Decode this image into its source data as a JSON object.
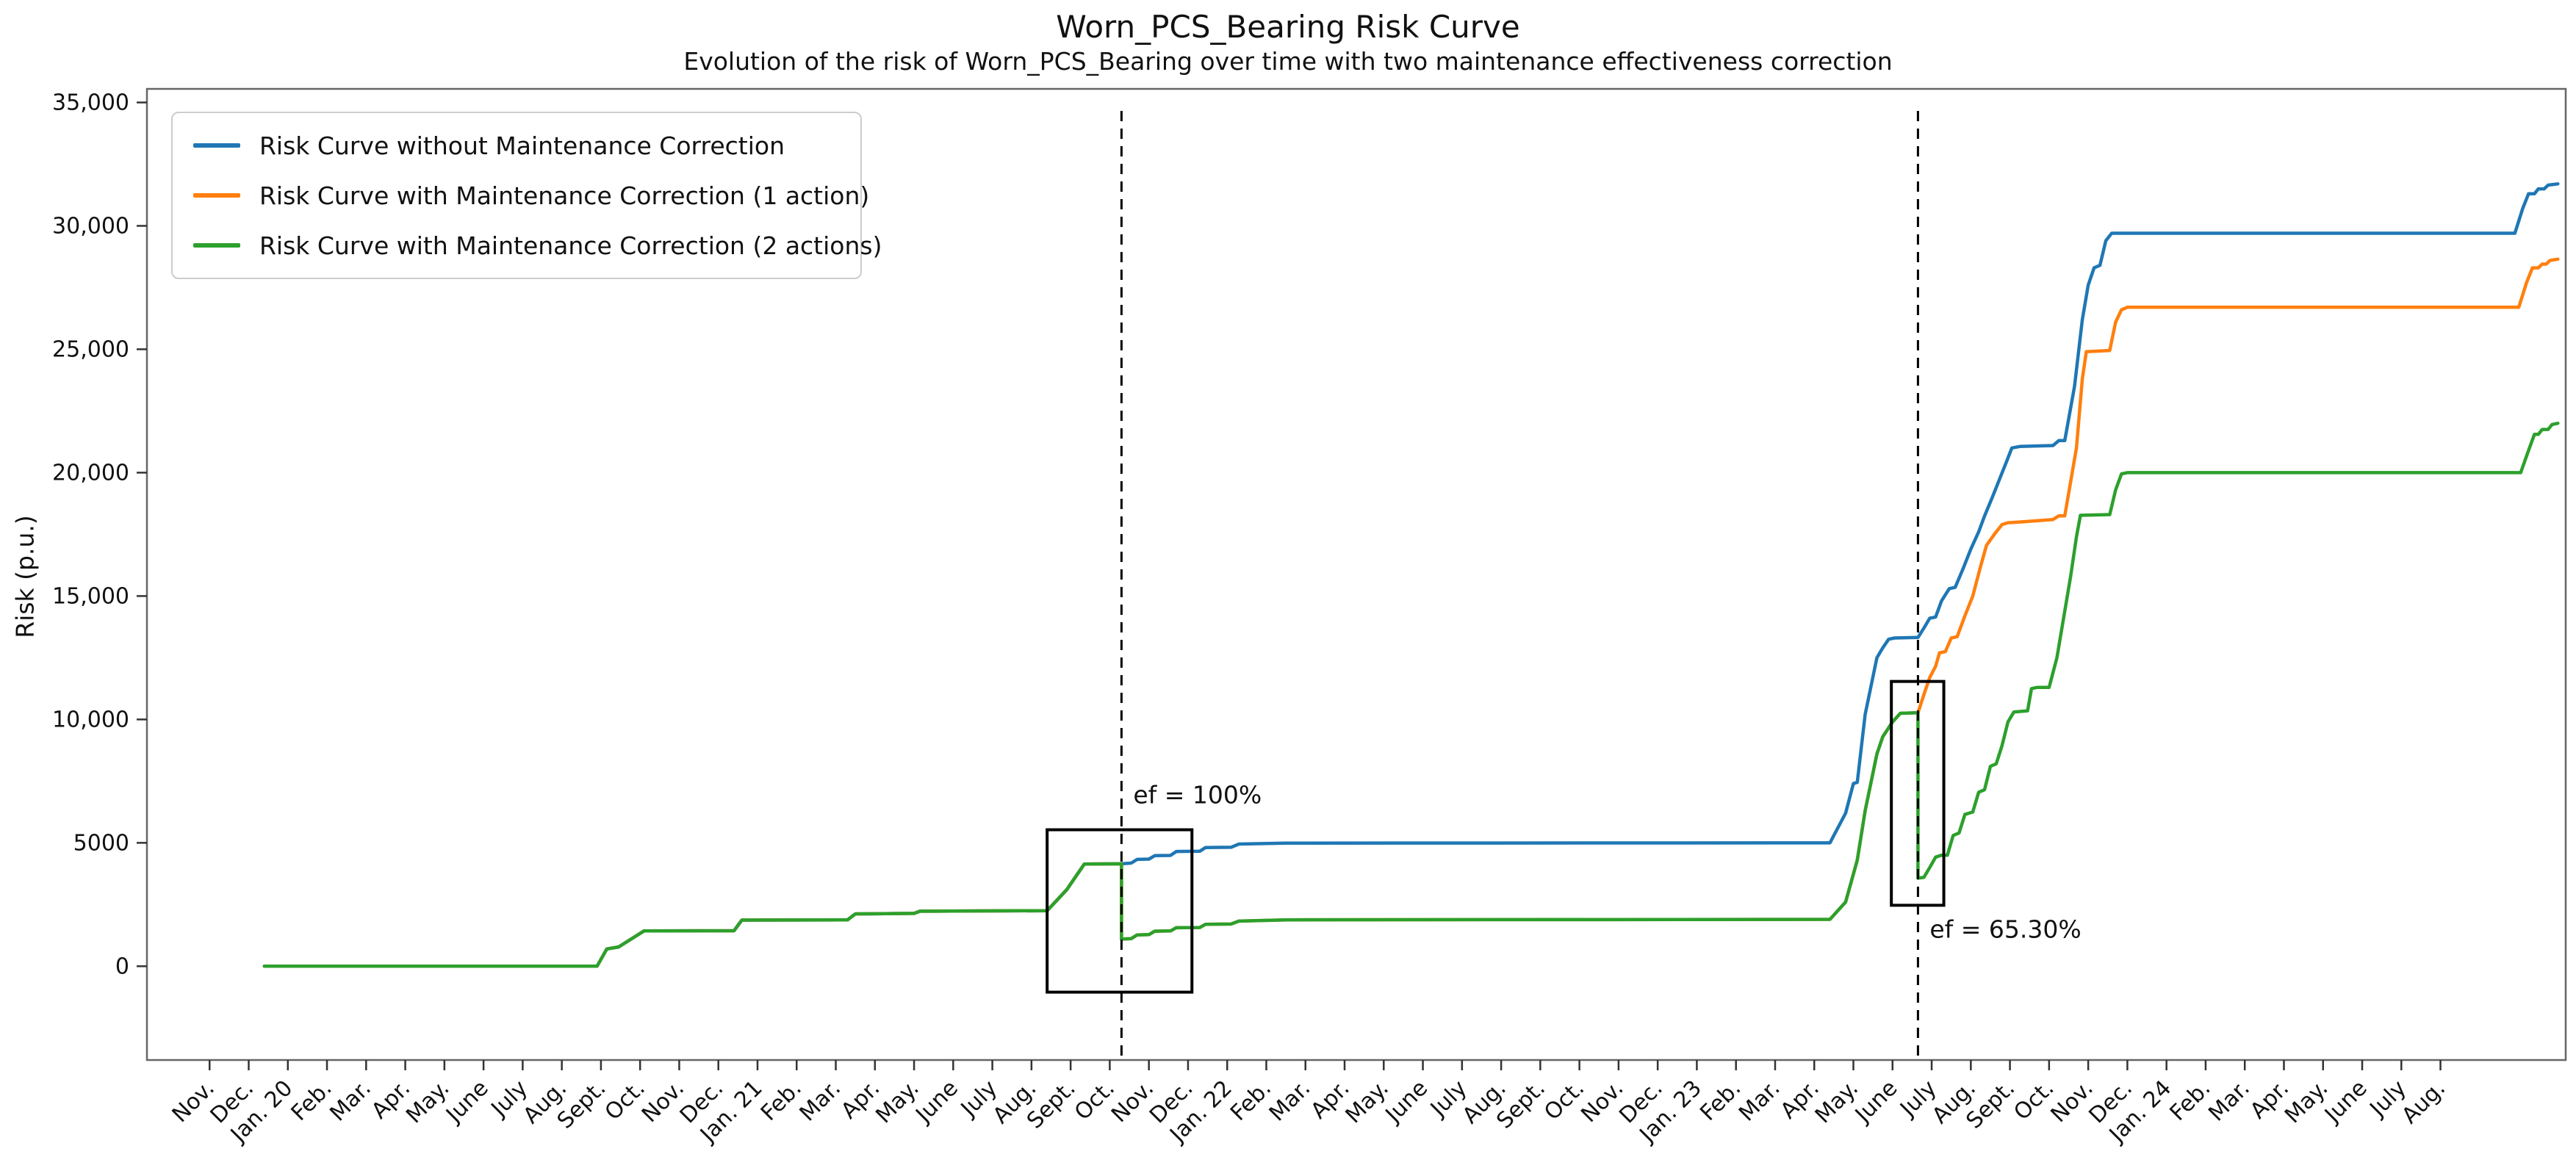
{
  "figure": {
    "title": "Worn_PCS_Bearing Risk Curve",
    "subtitle": "Evolution of the risk of Worn_PCS_Bearing over time with two maintenance effectiveness correction",
    "ylabel": "Risk (p.u.)"
  },
  "legend": {
    "entries": [
      {
        "label": "Risk Curve without Maintenance Correction",
        "color": "#1f77b4"
      },
      {
        "label": "Risk Curve with Maintenance Correction (1 action)",
        "color": "#ff7f0e"
      },
      {
        "label": "Risk Curve with Maintenance Correction (2 actions)",
        "color": "#2ca02c"
      }
    ]
  },
  "chart_data": {
    "type": "line",
    "title": "Worn_PCS_Bearing Risk Curve",
    "subtitle": "Evolution of the risk of Worn_PCS_Bearing over time with two maintenance effectiveness correction",
    "xlabel": "",
    "ylabel": "Risk (p.u.)",
    "x_unit": "month index, 0 = Nov. 2019 tick (data values in p.u.)",
    "x_domain": [
      -1.6,
      60.2
    ],
    "y_domain": [
      -3800,
      35550
    ],
    "grid": false,
    "legend_position": "upper left",
    "x_tick_labels": [
      "Nov.",
      "Dec.",
      "Jan. 20",
      "Feb.",
      "Mar.",
      "Apr.",
      "May.",
      "June",
      "July",
      "Aug.",
      "Sept.",
      "Oct.",
      "Nov.",
      "Dec.",
      "Jan. 21",
      "Feb.",
      "Mar.",
      "Apr.",
      "May.",
      "June",
      "July",
      "Aug.",
      "Sept.",
      "Oct.",
      "Nov.",
      "Dec.",
      "Jan. 22",
      "Feb.",
      "Mar.",
      "Apr.",
      "May.",
      "June",
      "July",
      "Aug.",
      "Sept.",
      "Oct.",
      "Nov.",
      "Dec.",
      "Jan. 23",
      "Feb.",
      "Mar.",
      "Apr.",
      "May.",
      "June",
      "July",
      "Aug.",
      "Sept.",
      "Oct.",
      "Nov.",
      "Dec.",
      "Jan. 24",
      "Feb.",
      "Mar.",
      "Apr.",
      "May.",
      "June",
      "July",
      "Aug."
    ],
    "y_ticks": [
      {
        "value": 0,
        "label": "0"
      },
      {
        "value": 5000,
        "label": "5000"
      },
      {
        "value": 10000,
        "label": "10,000"
      },
      {
        "value": 15000,
        "label": "15,000"
      },
      {
        "value": 20000,
        "label": "20,000"
      },
      {
        "value": 25000,
        "label": "25,000"
      },
      {
        "value": 30000,
        "label": "30,000"
      },
      {
        "value": 35000,
        "label": "35,000"
      }
    ],
    "series": [
      {
        "name": "Risk Curve without Maintenance Correction",
        "color": "#1f77b4",
        "points": [
          [
            1.4,
            0
          ],
          [
            9.9,
            0
          ],
          [
            10.15,
            700
          ],
          [
            10.45,
            780
          ],
          [
            11.1,
            1430
          ],
          [
            13.4,
            1440
          ],
          [
            13.6,
            1870
          ],
          [
            16.3,
            1880
          ],
          [
            16.5,
            2120
          ],
          [
            18.0,
            2140
          ],
          [
            18.15,
            2230
          ],
          [
            21.4,
            2250
          ],
          [
            21.9,
            3100
          ],
          [
            22.35,
            4140
          ],
          [
            23.3,
            4150
          ],
          [
            23.55,
            4180
          ],
          [
            23.7,
            4330
          ],
          [
            24.0,
            4340
          ],
          [
            24.15,
            4480
          ],
          [
            24.55,
            4490
          ],
          [
            24.7,
            4650
          ],
          [
            25.3,
            4660
          ],
          [
            25.45,
            4810
          ],
          [
            26.1,
            4820
          ],
          [
            26.3,
            4950
          ],
          [
            27.5,
            4990
          ],
          [
            41.4,
            5000
          ],
          [
            41.8,
            6200
          ],
          [
            42.0,
            7400
          ],
          [
            42.1,
            7450
          ],
          [
            42.3,
            10200
          ],
          [
            42.6,
            12500
          ],
          [
            42.75,
            12900
          ],
          [
            42.9,
            13250
          ],
          [
            43.05,
            13300
          ],
          [
            43.65,
            13320
          ],
          [
            43.8,
            13700
          ],
          [
            43.95,
            14100
          ],
          [
            44.1,
            14150
          ],
          [
            44.25,
            14800
          ],
          [
            44.45,
            15300
          ],
          [
            44.6,
            15350
          ],
          [
            44.8,
            16100
          ],
          [
            45.0,
            16900
          ],
          [
            45.2,
            17600
          ],
          [
            45.35,
            18240
          ],
          [
            45.55,
            19000
          ],
          [
            45.75,
            19800
          ],
          [
            45.9,
            20400
          ],
          [
            46.05,
            21000
          ],
          [
            46.25,
            21060
          ],
          [
            47.1,
            21100
          ],
          [
            47.25,
            21300
          ],
          [
            47.4,
            21300
          ],
          [
            47.65,
            23500
          ],
          [
            47.85,
            26200
          ],
          [
            48.0,
            27600
          ],
          [
            48.15,
            28300
          ],
          [
            48.3,
            28400
          ],
          [
            48.45,
            29400
          ],
          [
            48.6,
            29700
          ],
          [
            58.9,
            29700
          ],
          [
            59.1,
            30700
          ],
          [
            59.25,
            31300
          ],
          [
            59.4,
            31300
          ],
          [
            59.5,
            31500
          ],
          [
            59.65,
            31500
          ],
          [
            59.75,
            31650
          ],
          [
            60.0,
            31700
          ]
        ]
      },
      {
        "name": "Risk Curve with Maintenance Correction (1 action)",
        "color": "#ff7f0e",
        "points": [
          [
            1.4,
            0
          ],
          [
            9.9,
            0
          ],
          [
            10.15,
            700
          ],
          [
            10.45,
            780
          ],
          [
            11.1,
            1430
          ],
          [
            13.4,
            1440
          ],
          [
            13.6,
            1870
          ],
          [
            16.3,
            1880
          ],
          [
            16.5,
            2120
          ],
          [
            18.0,
            2140
          ],
          [
            18.15,
            2230
          ],
          [
            21.4,
            2250
          ],
          [
            21.9,
            3100
          ],
          [
            22.35,
            4140
          ],
          [
            23.3,
            4150
          ],
          [
            23.3,
            1100
          ],
          [
            23.55,
            1120
          ],
          [
            23.7,
            1270
          ],
          [
            24.0,
            1280
          ],
          [
            24.15,
            1420
          ],
          [
            24.55,
            1430
          ],
          [
            24.7,
            1560
          ],
          [
            25.3,
            1570
          ],
          [
            25.45,
            1700
          ],
          [
            26.1,
            1710
          ],
          [
            26.3,
            1830
          ],
          [
            27.5,
            1880
          ],
          [
            41.4,
            1900
          ],
          [
            41.8,
            2600
          ],
          [
            42.1,
            4300
          ],
          [
            42.3,
            6300
          ],
          [
            42.6,
            8600
          ],
          [
            42.75,
            9300
          ],
          [
            43.0,
            9900
          ],
          [
            43.2,
            10250
          ],
          [
            43.65,
            10270
          ],
          [
            43.8,
            11000
          ],
          [
            43.95,
            11700
          ],
          [
            44.1,
            12150
          ],
          [
            44.2,
            12700
          ],
          [
            44.35,
            12750
          ],
          [
            44.5,
            13300
          ],
          [
            44.65,
            13350
          ],
          [
            44.85,
            14200
          ],
          [
            45.05,
            15000
          ],
          [
            45.25,
            16200
          ],
          [
            45.4,
            17050
          ],
          [
            45.6,
            17500
          ],
          [
            45.8,
            17900
          ],
          [
            45.95,
            17970
          ],
          [
            46.25,
            18000
          ],
          [
            47.1,
            18100
          ],
          [
            47.25,
            18250
          ],
          [
            47.4,
            18250
          ],
          [
            47.7,
            21000
          ],
          [
            47.85,
            23800
          ],
          [
            47.95,
            24900
          ],
          [
            48.55,
            24950
          ],
          [
            48.7,
            26100
          ],
          [
            48.85,
            26600
          ],
          [
            49.0,
            26700
          ],
          [
            59.0,
            26700
          ],
          [
            59.2,
            27700
          ],
          [
            59.35,
            28300
          ],
          [
            59.5,
            28300
          ],
          [
            59.6,
            28450
          ],
          [
            59.7,
            28450
          ],
          [
            59.8,
            28600
          ],
          [
            60.0,
            28650
          ]
        ]
      },
      {
        "name": "Risk Curve with Maintenance Correction (2 actions)",
        "color": "#2ca02c",
        "points": [
          [
            1.4,
            0
          ],
          [
            9.9,
            0
          ],
          [
            10.15,
            700
          ],
          [
            10.45,
            780
          ],
          [
            11.1,
            1430
          ],
          [
            13.4,
            1440
          ],
          [
            13.6,
            1870
          ],
          [
            16.3,
            1880
          ],
          [
            16.5,
            2120
          ],
          [
            18.0,
            2140
          ],
          [
            18.15,
            2230
          ],
          [
            21.4,
            2250
          ],
          [
            21.9,
            3100
          ],
          [
            22.35,
            4140
          ],
          [
            23.3,
            4150
          ],
          [
            23.3,
            1100
          ],
          [
            23.55,
            1120
          ],
          [
            23.7,
            1270
          ],
          [
            24.0,
            1280
          ],
          [
            24.15,
            1420
          ],
          [
            24.55,
            1430
          ],
          [
            24.7,
            1560
          ],
          [
            25.3,
            1570
          ],
          [
            25.45,
            1700
          ],
          [
            26.1,
            1710
          ],
          [
            26.3,
            1830
          ],
          [
            27.5,
            1880
          ],
          [
            41.4,
            1900
          ],
          [
            41.8,
            2600
          ],
          [
            42.1,
            4300
          ],
          [
            42.3,
            6300
          ],
          [
            42.6,
            8600
          ],
          [
            42.75,
            9300
          ],
          [
            43.0,
            9900
          ],
          [
            43.2,
            10250
          ],
          [
            43.65,
            10270
          ],
          [
            43.65,
            3570
          ],
          [
            43.8,
            3600
          ],
          [
            43.95,
            4000
          ],
          [
            44.1,
            4420
          ],
          [
            44.25,
            4500
          ],
          [
            44.4,
            4500
          ],
          [
            44.55,
            5300
          ],
          [
            44.7,
            5400
          ],
          [
            44.85,
            6150
          ],
          [
            45.05,
            6250
          ],
          [
            45.2,
            7050
          ],
          [
            45.35,
            7150
          ],
          [
            45.5,
            8100
          ],
          [
            45.65,
            8200
          ],
          [
            45.8,
            8950
          ],
          [
            45.95,
            9900
          ],
          [
            46.1,
            10300
          ],
          [
            46.45,
            10350
          ],
          [
            46.55,
            11250
          ],
          [
            46.7,
            11300
          ],
          [
            47.0,
            11300
          ],
          [
            47.2,
            12500
          ],
          [
            47.55,
            15800
          ],
          [
            47.7,
            17400
          ],
          [
            47.8,
            18270
          ],
          [
            48.55,
            18300
          ],
          [
            48.7,
            19300
          ],
          [
            48.85,
            19950
          ],
          [
            49.0,
            20000
          ],
          [
            59.05,
            20000
          ],
          [
            59.25,
            20900
          ],
          [
            59.4,
            21550
          ],
          [
            59.5,
            21550
          ],
          [
            59.6,
            21750
          ],
          [
            59.75,
            21750
          ],
          [
            59.85,
            21950
          ],
          [
            60.0,
            22000
          ]
        ]
      }
    ],
    "events": [
      {
        "x": 23.3,
        "label": "ef = 100%",
        "label_x": 23.6,
        "label_y": 6600,
        "rect": {
          "x0": 21.4,
          "x1": 25.1,
          "y0": -1050,
          "y1": 5530
        }
      },
      {
        "x": 43.65,
        "label": "ef = 65.30%",
        "label_x": 43.95,
        "label_y": 1150,
        "rect": {
          "x0": 42.97,
          "x1": 44.31,
          "y0": 2470,
          "y1": 11540
        }
      }
    ],
    "annotations_note": "dashed vertical lines mark the two maintenance actions (Oct. 2021 and June 2023)"
  }
}
